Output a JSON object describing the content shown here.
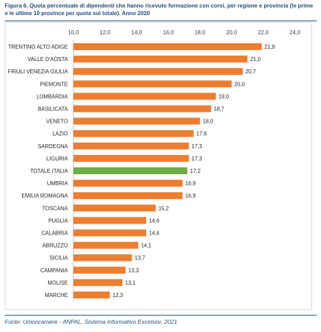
{
  "figure": {
    "caption": "Figura 6. Quota percentuale di dipendenti che hanno ricevuto formazione con corsi, per regione e provincia (le prime e le ultime 10 province per quota sul totale). Anno 2020",
    "source": "Fonte: Unioncamere - ANPAL, Sistema Informativo Excelsior, 2021"
  },
  "colors": {
    "bar": "#ed7d31",
    "highlight": "#70ad47",
    "text_accent": "#1f4e79",
    "grid": "#d9d9d9"
  },
  "chart_data": {
    "type": "bar",
    "orientation": "horizontal",
    "title": "",
    "xlabel": "",
    "ylabel": "",
    "xlim": [
      10.0,
      24.0
    ],
    "ticks": [
      "10,0",
      "12,0",
      "14,0",
      "16,0",
      "18,0",
      "20,0",
      "22,0",
      "24,0"
    ],
    "axis_position": "top",
    "grid": false,
    "categories": [
      "TRENTINO ALTO ADIGE",
      "VALLE D'AOSTA",
      "FRIULI VENEZIA GIULIA",
      "PIEMONTE",
      "LOMBARDIA",
      "BASILICATA",
      "VENETO",
      "LAZIO",
      "SARDEGNA",
      "LIGURIA",
      "TOTALE ITALIA",
      "UMBRIA",
      "EMILIA ROMAGNA",
      "TOSCANA",
      "PUGLIA",
      "CALABRIA",
      "ABRUZZO",
      "SICILIA",
      "CAMPANIA",
      "MOLISE",
      "MARCHE"
    ],
    "values": [
      21.9,
      21.0,
      20.7,
      20.0,
      19.0,
      18.7,
      18.0,
      17.6,
      17.3,
      17.3,
      17.2,
      16.9,
      16.9,
      15.2,
      14.6,
      14.6,
      14.1,
      13.7,
      13.3,
      13.1,
      12.3
    ],
    "value_labels": [
      "21,9",
      "21,0",
      "20,7",
      "20,0",
      "19,0",
      "18,7",
      "18,0",
      "17,6",
      "17,3",
      "17,3",
      "17,2",
      "16,9",
      "16,9",
      "15,2",
      "14,6",
      "14,6",
      "14,1",
      "13,7",
      "13,3",
      "13,1",
      "12,3"
    ],
    "highlight_category": "TOTALE ITALIA"
  }
}
